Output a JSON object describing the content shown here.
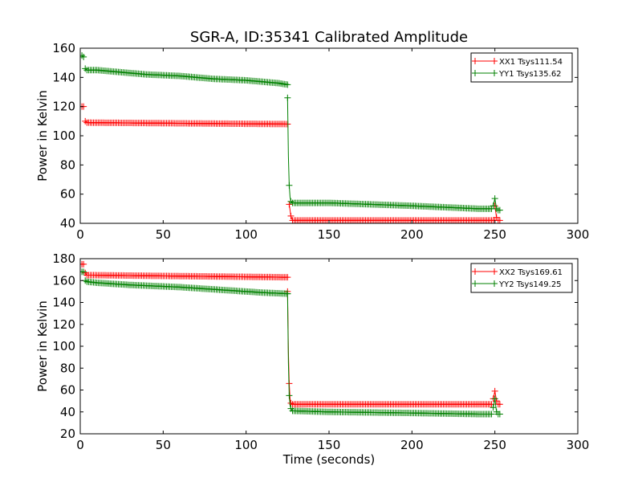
{
  "chart_data": [
    {
      "type": "line",
      "title": "SGR-A, ID:35341 Calibrated Amplitude",
      "xlabel": "",
      "ylabel": "Power in Kelvin",
      "xlim": [
        0,
        300
      ],
      "ylim": [
        40,
        160
      ],
      "xticks": [
        0,
        50,
        100,
        150,
        200,
        250,
        300
      ],
      "yticks": [
        40,
        60,
        80,
        100,
        120,
        140,
        160
      ],
      "grid": false,
      "legend_position": "top-right",
      "series": [
        {
          "name": "XX1 Tsys111.54",
          "color": "#ff0000",
          "segments": [
            {
              "x": [
                1,
                2
              ],
              "y": [
                120,
                120
              ]
            },
            {
              "x": [
                3,
                4,
                125
              ],
              "y": [
                110,
                109,
                108
              ]
            },
            {
              "x": [
                126,
                127,
                128,
                250
              ],
              "y": [
                53,
                45,
                42,
                42
              ]
            },
            {
              "x": [
                250,
                251
              ],
              "y": [
                52,
                44
              ]
            },
            {
              "x": [
                252,
                253
              ],
              "y": [
                42,
                42
              ]
            }
          ]
        },
        {
          "name": "YY1 Tsys135.62",
          "color": "#008000",
          "segments": [
            {
              "x": [
                1,
                2
              ],
              "y": [
                155,
                154
              ]
            },
            {
              "x": [
                3,
                4,
                10,
                20,
                40,
                60,
                80,
                100,
                120,
                125
              ],
              "y": [
                146,
                145,
                145,
                144,
                142,
                141,
                139,
                138,
                136,
                135
              ]
            },
            {
              "x": [
                125,
                125.5,
                126,
                126.5,
                127,
                128,
                150,
                200,
                240,
                248
              ],
              "y": [
                126,
                86,
                66,
                58,
                55,
                54,
                54,
                52,
                50,
                50
              ]
            },
            {
              "x": [
                249,
                250,
                251
              ],
              "y": [
                52,
                57,
                50
              ]
            },
            {
              "x": [
                252,
                253
              ],
              "y": [
                49,
                49
              ]
            }
          ]
        }
      ]
    },
    {
      "type": "line",
      "title": "",
      "xlabel": "Time (seconds)",
      "ylabel": "Power in Kelvin",
      "xlim": [
        0,
        300
      ],
      "ylim": [
        20,
        180
      ],
      "xticks": [
        0,
        50,
        100,
        150,
        200,
        250,
        300
      ],
      "yticks": [
        20,
        40,
        60,
        80,
        100,
        120,
        140,
        160,
        180
      ],
      "grid": false,
      "legend_position": "top-right",
      "series": [
        {
          "name": "XX2 Tsys169.61",
          "color": "#ff0000",
          "segments": [
            {
              "x": [
                1,
                2
              ],
              "y": [
                175,
                175
              ]
            },
            {
              "x": [
                3,
                4,
                125
              ],
              "y": [
                167,
                165,
                163
              ]
            },
            {
              "x": [
                125,
                125.5,
                126,
                126.5,
                127,
                128,
                248
              ],
              "y": [
                150,
                95,
                66,
                52,
                48,
                47,
                47
              ]
            },
            {
              "x": [
                249,
                250,
                251
              ],
              "y": [
                52,
                59,
                50
              ]
            },
            {
              "x": [
                252,
                253
              ],
              "y": [
                47,
                47
              ]
            }
          ]
        },
        {
          "name": "YY2 Tsys149.25",
          "color": "#008000",
          "segments": [
            {
              "x": [
                1,
                2
              ],
              "y": [
                168,
                168
              ]
            },
            {
              "x": [
                3,
                4,
                10,
                30,
                60,
                90,
                110,
                125
              ],
              "y": [
                160,
                159,
                158,
                156,
                154,
                151,
                149,
                148
              ]
            },
            {
              "x": [
                125,
                125.5,
                126,
                126.5,
                127,
                128,
                150,
                200,
                240,
                248
              ],
              "y": [
                148,
                85,
                55,
                46,
                43,
                41,
                40,
                39,
                38,
                38
              ]
            },
            {
              "x": [
                249,
                250,
                251
              ],
              "y": [
                44,
                52,
                40
              ]
            },
            {
              "x": [
                252,
                253
              ],
              "y": [
                38,
                38
              ]
            }
          ]
        }
      ]
    }
  ]
}
